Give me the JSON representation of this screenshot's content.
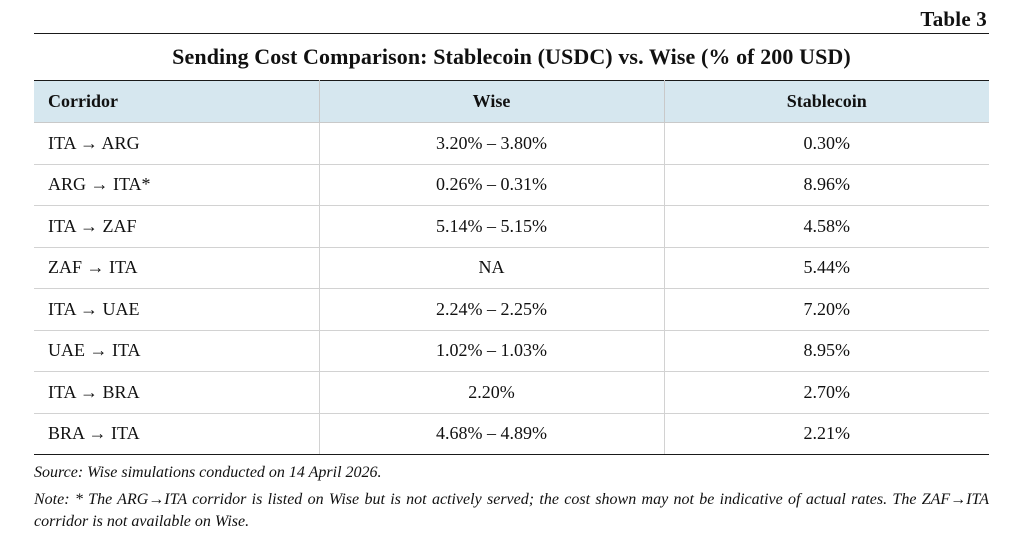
{
  "table_number": "Table 3",
  "title": "Sending Cost Comparison: Stablecoin (USDC) vs. Wise (% of 200 USD)",
  "columns": [
    "Corridor",
    "Wise",
    "Stablecoin"
  ],
  "rows": [
    {
      "corridor": "ITA → ARG",
      "wise": "3.20% – 3.80%",
      "stablecoin": "0.30%"
    },
    {
      "corridor": "ARG → ITA*",
      "wise": "0.26% – 0.31%",
      "stablecoin": "8.96%"
    },
    {
      "corridor": "ITA → ZAF",
      "wise": "5.14% – 5.15%",
      "stablecoin": "4.58%"
    },
    {
      "corridor": "ZAF → ITA",
      "wise": "NA",
      "stablecoin": "5.44%"
    },
    {
      "corridor": "ITA → UAE",
      "wise": "2.24% – 2.25%",
      "stablecoin": "7.20%"
    },
    {
      "corridor": "UAE → ITA",
      "wise": "1.02% – 1.03%",
      "stablecoin": "8.95%"
    },
    {
      "corridor": "ITA → BRA",
      "wise": "2.20%",
      "stablecoin": "2.70%"
    },
    {
      "corridor": "BRA → ITA",
      "wise": "4.68% – 4.89%",
      "stablecoin": "2.21%"
    }
  ],
  "source": "Source: Wise simulations conducted on 14 April 2026.",
  "note": "Note: * The ARG→ITA corridor is listed on Wise but is not actively served; the cost shown may not be indicative of actual rates. The ZAF→ITA corridor is not available on Wise.",
  "colors": {
    "header_background": "#d6e7ef",
    "rule": "#1a1a1a",
    "cell_border": "#d2d2d2"
  }
}
